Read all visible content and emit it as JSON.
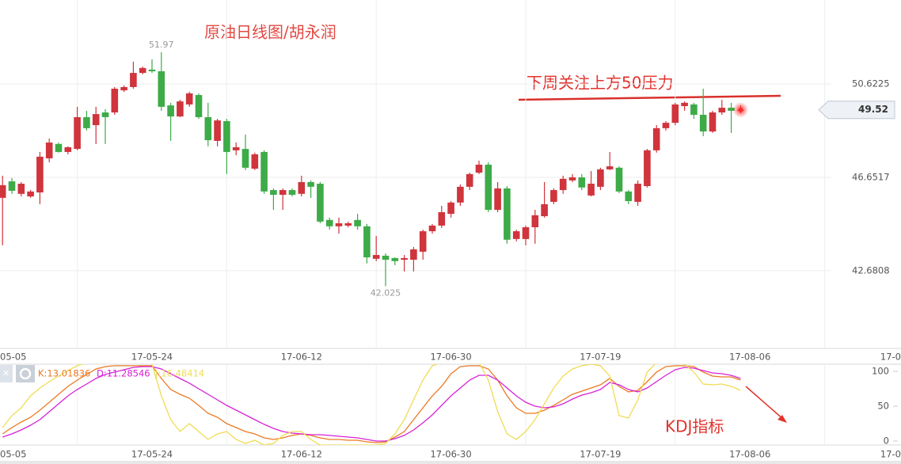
{
  "chart_data": [
    {
      "type": "candlestick",
      "title": "原油日线图/胡永润",
      "annotation": "下周关注上方50压力",
      "up_color": "#d0343c",
      "down_color": "#3dab48",
      "categories": [
        "05-05",
        null,
        null,
        null,
        null,
        null,
        null,
        null,
        null,
        null,
        null,
        null,
        null,
        null,
        null,
        null,
        "17-05-24",
        null,
        null,
        null,
        null,
        null,
        null,
        null,
        null,
        null,
        null,
        null,
        null,
        null,
        null,
        null,
        "17-06-12",
        null,
        null,
        null,
        null,
        null,
        null,
        null,
        null,
        null,
        null,
        null,
        null,
        null,
        null,
        null,
        "17-06-30",
        null,
        null,
        null,
        null,
        null,
        null,
        null,
        null,
        null,
        null,
        null,
        null,
        null,
        null,
        null,
        "17-07-19",
        null,
        null,
        null,
        null,
        null,
        null,
        null,
        null,
        null,
        null,
        null,
        null,
        null,
        null,
        null,
        "17-08-06",
        null,
        null,
        null,
        null,
        null,
        null,
        null,
        null,
        null,
        null,
        null,
        null,
        null,
        null,
        null,
        "17-0"
      ],
      "open": [
        45.78,
        46.48,
        45.95,
        45.84,
        46.01,
        47.46,
        48.07,
        47.73,
        47.86,
        49.21,
        48.87,
        49.41,
        49.41,
        50.35,
        50.49,
        51.09,
        51.23,
        51.16,
        49.71,
        49.24,
        49.75,
        50.15,
        49.21,
        48.2,
        49.04,
        47.8,
        47.86,
        47.02,
        47.73,
        46.11,
        45.91,
        46.11,
        45.95,
        46.45,
        46.38,
        44.84,
        44.57,
        44.6,
        44.84,
        44.57,
        43.19,
        43.32,
        43.22,
        43.15,
        43.15,
        43.49,
        44.36,
        44.6,
        45.1,
        45.58,
        46.25,
        46.85,
        47.19,
        45.27,
        46.18,
        44.03,
        44.03,
        44.53,
        45.0,
        45.61,
        46.11,
        46.52,
        46.65,
        45.88,
        46.25,
        46.99,
        47.06,
        46.05,
        45.61,
        46.28,
        47.8,
        48.74,
        48.97,
        49.68,
        49.75,
        49.31,
        48.6,
        49.41,
        49.61,
        49.48,
        null,
        null,
        null,
        null,
        null,
        null,
        null,
        null,
        null,
        null,
        null,
        null,
        null,
        null,
        null,
        null,
        null
      ],
      "high": [
        46.72,
        46.62,
        46.45,
        46.11,
        47.73,
        48.3,
        48.13,
        47.97,
        49.65,
        49.48,
        49.65,
        49.55,
        50.49,
        50.56,
        51.57,
        51.36,
        51.67,
        51.97,
        49.82,
        49.95,
        50.29,
        50.22,
        49.82,
        49.14,
        49.14,
        48.13,
        48.47,
        47.7,
        47.8,
        46.18,
        46.18,
        46.18,
        46.72,
        46.52,
        46.45,
        44.94,
        44.94,
        44.77,
        45.1,
        44.67,
        44.16,
        43.42,
        43.25,
        43.35,
        43.69,
        44.43,
        44.67,
        45.44,
        45.64,
        46.35,
        46.85,
        47.36,
        47.29,
        46.45,
        46.28,
        44.43,
        44.6,
        45.27,
        46.45,
        46.18,
        46.72,
        46.79,
        46.79,
        46.92,
        47.06,
        47.73,
        47.12,
        46.11,
        46.52,
        47.86,
        48.87,
        49.04,
        49.82,
        49.88,
        49.82,
        50.42,
        49.48,
        49.95,
        49.82,
        49.71,
        null,
        null,
        null,
        null,
        null,
        null,
        null,
        null,
        null,
        null,
        null,
        null,
        null,
        null,
        null,
        null,
        null
      ],
      "low": [
        43.76,
        45.95,
        45.84,
        45.78,
        45.51,
        47.29,
        47.7,
        47.63,
        47.8,
        48.64,
        48.07,
        48.07,
        49.31,
        50.28,
        50.42,
        51.03,
        51.09,
        49.48,
        48.2,
        49.21,
        49.65,
        49.14,
        47.97,
        47.97,
        46.79,
        47.59,
        46.96,
        46.96,
        45.95,
        45.27,
        45.27,
        45.84,
        45.84,
        45.78,
        44.7,
        44.43,
        44.26,
        44.53,
        44.43,
        42.99,
        43.09,
        42.025,
        42.92,
        42.65,
        42.65,
        43.15,
        44.26,
        44.5,
        44.94,
        45.44,
        46.11,
        46.79,
        45.17,
        45.17,
        43.83,
        43.93,
        43.76,
        43.83,
        44.94,
        45.51,
        45.95,
        46.45,
        46.11,
        45.84,
        46.11,
        46.96,
        45.98,
        45.51,
        45.44,
        46.22,
        47.7,
        48.64,
        48.87,
        49.48,
        49.14,
        48.4,
        48.54,
        49.31,
        48.54,
        49.38,
        null,
        null,
        null,
        null,
        null,
        null,
        null,
        null,
        null,
        null,
        null,
        null,
        null,
        null,
        null,
        null,
        null
      ],
      "close": [
        46.32,
        46.08,
        46.38,
        46.05,
        47.53,
        48.13,
        47.73,
        47.93,
        49.21,
        48.74,
        49.34,
        49.21,
        50.42,
        50.49,
        51.09,
        51.3,
        51.16,
        49.65,
        49.24,
        49.88,
        50.22,
        49.21,
        48.23,
        49.07,
        47.73,
        47.93,
        47.06,
        47.63,
        46.05,
        45.91,
        46.11,
        45.91,
        46.45,
        46.25,
        44.77,
        44.57,
        44.7,
        44.7,
        44.57,
        43.25,
        43.35,
        43.15,
        43.09,
        43.22,
        43.59,
        44.36,
        44.6,
        45.17,
        45.58,
        46.25,
        46.79,
        47.19,
        45.27,
        46.18,
        44.0,
        44.36,
        44.53,
        45.04,
        45.51,
        46.11,
        46.59,
        46.65,
        46.22,
        46.38,
        46.99,
        47.12,
        46.05,
        45.64,
        46.38,
        47.8,
        48.74,
        48.97,
        49.75,
        49.82,
        49.31,
        48.6,
        49.41,
        49.61,
        49.48,
        49.52,
        null,
        null,
        null,
        null,
        null,
        null,
        null,
        null,
        null,
        null,
        null,
        null,
        null,
        null,
        null,
        null,
        null
      ],
      "ylim": [
        39.38,
        54.19
      ],
      "yticks": [
        50.6225,
        46.6517,
        42.6808
      ],
      "grid": true
    },
    {
      "type": "line",
      "annotation": "KDJ指标",
      "categories": [
        "05-05",
        null,
        null,
        null,
        null,
        null,
        null,
        null,
        null,
        null,
        null,
        null,
        null,
        null,
        null,
        null,
        "17-05-24",
        null,
        null,
        null,
        null,
        null,
        null,
        null,
        null,
        null,
        null,
        null,
        null,
        null,
        null,
        null,
        "17-06-12",
        null,
        null,
        null,
        null,
        null,
        null,
        null,
        null,
        null,
        null,
        null,
        null,
        null,
        null,
        null,
        "17-06-30",
        null,
        null,
        null,
        null,
        null,
        null,
        null,
        null,
        null,
        null,
        null,
        null,
        null,
        null,
        null,
        "17-07-19",
        null,
        null,
        null,
        null,
        null,
        null,
        null,
        null,
        null,
        null,
        null,
        null,
        null,
        null,
        null,
        "17-08-06",
        null,
        null,
        null,
        null,
        null,
        null,
        null,
        null,
        null,
        null,
        null,
        null,
        null,
        null,
        null,
        "17-0"
      ],
      "series": [
        {
          "name": "K:13.01836",
          "color": "#ea7a24",
          "values": [
            10.2,
            19.3,
            27.3,
            34.1,
            44.3,
            55.7,
            67,
            78.4,
            87.5,
            95.5,
            103.4,
            106.8,
            108,
            108,
            108,
            108,
            108,
            89.8,
            73.9,
            67,
            61.4,
            51.1,
            39.8,
            34.1,
            25,
            19.3,
            13.6,
            10.2,
            4.5,
            2.3,
            4.5,
            8,
            10.2,
            8,
            4.5,
            2.3,
            2.3,
            1.1,
            1.1,
            -1.1,
            -2.3,
            -1.1,
            5.7,
            13.6,
            30.7,
            47.7,
            64.8,
            78.4,
            96.6,
            106.8,
            108,
            108,
            103.4,
            87.5,
            64.8,
            47.7,
            39.8,
            39.8,
            44.3,
            51.1,
            59.1,
            67,
            71.6,
            76.1,
            80.7,
            89.8,
            78.4,
            70.5,
            72.7,
            85.2,
            98.9,
            106.8,
            108,
            108,
            106.8,
            98.9,
            93.2,
            92,
            92,
            87.5,
            null,
            null,
            null,
            null,
            null,
            null,
            null,
            null,
            null,
            null,
            null,
            null,
            null,
            null,
            null,
            null,
            null
          ]
        },
        {
          "name": "D:11.28546",
          "color": "#d623d6",
          "values": [
            5.7,
            10.2,
            15.9,
            22.7,
            30.7,
            42,
            53.4,
            64.8,
            73.9,
            81.8,
            89.8,
            95.5,
            98.9,
            102.3,
            105.7,
            106.8,
            106.8,
            103.4,
            96.6,
            89.8,
            83,
            75,
            67,
            59.1,
            51.1,
            44.3,
            37.5,
            30.7,
            23.9,
            18.2,
            13.6,
            11.4,
            10.2,
            9.1,
            9.1,
            8,
            6.8,
            5.7,
            4.5,
            2.3,
            0,
            0,
            3.4,
            8,
            15.9,
            26.1,
            37.5,
            51.1,
            64.8,
            76.1,
            87.5,
            94.3,
            94.3,
            87.5,
            76.1,
            64.8,
            55.7,
            50,
            47.7,
            48.9,
            53.4,
            60.2,
            65.9,
            69.3,
            73.9,
            84.1,
            80.7,
            73.9,
            70.5,
            76.1,
            85.2,
            94.3,
            102.3,
            105.7,
            104.5,
            101.1,
            97.7,
            96.6,
            94.3,
            89.8,
            null,
            null,
            null,
            null,
            null,
            null,
            null,
            null,
            null,
            null,
            null,
            null,
            null,
            null,
            null,
            null,
            null
          ]
        },
        {
          "name": "J:16.48414",
          "color": "#f0dc55",
          "values": [
            19.3,
            36.4,
            47.7,
            64.8,
            76.1,
            85.2,
            93.2,
            101.1,
            108,
            112.5,
            115.9,
            115.9,
            115.9,
            115.9,
            115.9,
            115.9,
            110.2,
            64.8,
            30.7,
            13.6,
            25,
            13.6,
            2.3,
            10.2,
            13.6,
            2.3,
            -3.4,
            1.1,
            -5.7,
            -3.4,
            8,
            13.6,
            13.6,
            2.3,
            -5.7,
            -5.7,
            -5.7,
            -5.7,
            -5.7,
            -5.7,
            -5.7,
            -3.4,
            10.2,
            30.7,
            59.1,
            87.5,
            108,
            112.5,
            112.5,
            115.9,
            115.9,
            112.5,
            87.5,
            42,
            10.2,
            2.3,
            13.6,
            30.7,
            53.4,
            76.1,
            93.2,
            103.4,
            108,
            110.2,
            108,
            93.2,
            36.4,
            33,
            59.1,
            98.9,
            112.5,
            112.5,
            112.5,
            110.2,
            98.9,
            81.8,
            80.7,
            81.8,
            78.4,
            72.7,
            null,
            null,
            null,
            null,
            null,
            null,
            null,
            null,
            null,
            null,
            null,
            null,
            null,
            null,
            null,
            null,
            null
          ]
        }
      ],
      "ylim": [
        -5.7,
        110.2
      ],
      "yticks": [
        0,
        50,
        100
      ],
      "grid": false
    }
  ]
}
